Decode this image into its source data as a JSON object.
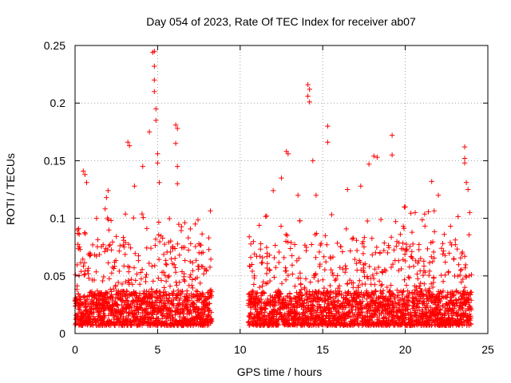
{
  "chart_data": {
    "type": "scatter",
    "title": "Day 054 of 2023, Rate Of TEC Index for receiver ab07",
    "xlabel": "GPS time / hours",
    "ylabel": "ROTI / TECUs",
    "xlim": [
      0,
      25
    ],
    "ylim": [
      0,
      0.25
    ],
    "xticks": [
      "0",
      "5",
      "10",
      "15",
      "20",
      "25"
    ],
    "yticks": [
      "0",
      "0.05",
      "0.1",
      "0.15",
      "0.2",
      "0.25"
    ],
    "grid": true,
    "marker": "+",
    "color": "#ff0000",
    "series": [
      {
        "segments": [
          {
            "x": [
              0.0,
              8.3
            ]
          },
          {
            "x": [
              10.5,
              24.0
            ]
          }
        ],
        "points": [
          [
            0.5,
            0.141
          ],
          [
            0.6,
            0.138
          ],
          [
            0.7,
            0.131
          ],
          [
            1.3,
            0.1
          ],
          [
            1.9,
            0.118
          ],
          [
            2.0,
            0.124
          ],
          [
            3.2,
            0.166
          ],
          [
            3.3,
            0.163
          ],
          [
            3.6,
            0.128
          ],
          [
            4.1,
            0.145
          ],
          [
            4.5,
            0.175
          ],
          [
            4.7,
            0.244
          ],
          [
            4.8,
            0.245
          ],
          [
            4.8,
            0.232
          ],
          [
            4.8,
            0.22
          ],
          [
            4.8,
            0.21
          ],
          [
            4.9,
            0.195
          ],
          [
            4.9,
            0.185
          ],
          [
            5.0,
            0.156
          ],
          [
            5.0,
            0.148
          ],
          [
            5.1,
            0.131
          ],
          [
            6.1,
            0.181
          ],
          [
            6.2,
            0.178
          ],
          [
            6.1,
            0.165
          ],
          [
            6.2,
            0.145
          ],
          [
            6.2,
            0.13
          ],
          [
            8.1,
            0.083
          ],
          [
            12.0,
            0.124
          ],
          [
            12.5,
            0.135
          ],
          [
            12.8,
            0.158
          ],
          [
            12.9,
            0.156
          ],
          [
            13.5,
            0.12
          ],
          [
            14.1,
            0.216
          ],
          [
            14.2,
            0.212
          ],
          [
            14.1,
            0.206
          ],
          [
            14.2,
            0.201
          ],
          [
            14.4,
            0.15
          ],
          [
            14.6,
            0.12
          ],
          [
            15.3,
            0.18
          ],
          [
            15.3,
            0.166
          ],
          [
            16.5,
            0.125
          ],
          [
            17.3,
            0.128
          ],
          [
            17.8,
            0.147
          ],
          [
            18.1,
            0.154
          ],
          [
            18.3,
            0.153
          ],
          [
            19.2,
            0.172
          ],
          [
            19.2,
            0.155
          ],
          [
            20.0,
            0.11
          ],
          [
            20.6,
            0.105
          ],
          [
            21.6,
            0.132
          ],
          [
            22.0,
            0.12
          ],
          [
            23.6,
            0.162
          ],
          [
            23.6,
            0.152
          ],
          [
            23.6,
            0.148
          ],
          [
            23.7,
            0.131
          ],
          [
            23.8,
            0.125
          ],
          [
            23.9,
            0.105
          ]
        ]
      }
    ]
  }
}
